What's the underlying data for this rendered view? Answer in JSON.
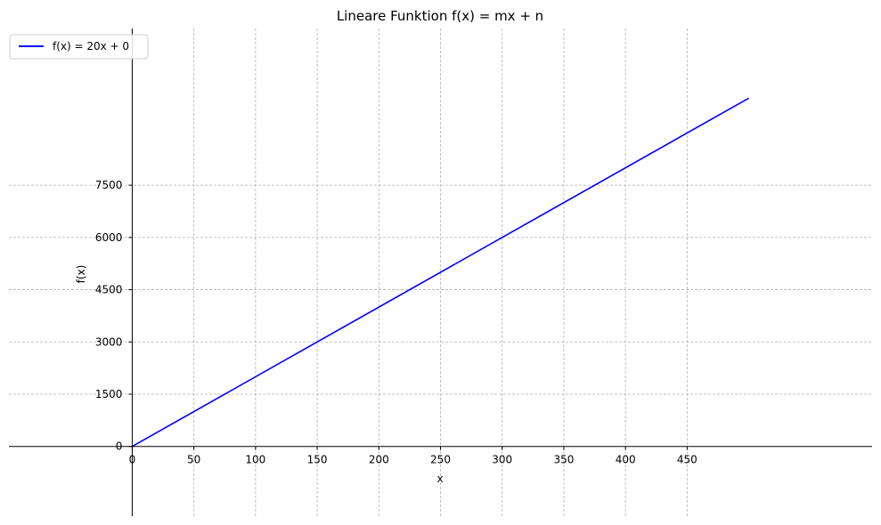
{
  "chart_data": {
    "type": "line",
    "title": "Lineare Funktion f(x) = mx + n",
    "xlabel": "x",
    "ylabel": "f(x)",
    "xlim": [
      -100,
      600
    ],
    "ylim": [
      -2000,
      12000
    ],
    "xticks": [
      0,
      50,
      100,
      150,
      200,
      250,
      300,
      350,
      400,
      450
    ],
    "yticks": [
      0,
      1500,
      3000,
      4500,
      6000,
      7500
    ],
    "grid": true,
    "legend_position": "top-left",
    "series": [
      {
        "name": "f(x) = 20x + 0",
        "color": "#0000ff",
        "x": [
          0,
          500
        ],
        "y": [
          0,
          10000
        ]
      }
    ]
  }
}
